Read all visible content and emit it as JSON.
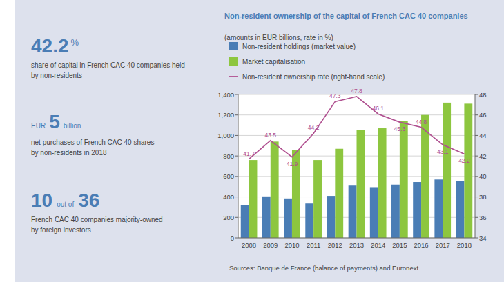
{
  "chart_data": {
    "type": "bar",
    "title": "Non-resident ownership of the capital of French CAC 40 companies",
    "subtitle": "(amounts in EUR billions, rate in %)",
    "categories": [
      "2008",
      "2009",
      "2010",
      "2011",
      "2012",
      "2013",
      "2014",
      "2015",
      "2016",
      "2017",
      "2018"
    ],
    "series": [
      {
        "name": "Non-resident holdings (market value)",
        "color": "#4a7db5",
        "values": [
          320,
          405,
          385,
          335,
          410,
          510,
          495,
          520,
          545,
          570,
          555
        ]
      },
      {
        "name": "Market capitalisation",
        "color": "#8dc63f",
        "values": [
          760,
          940,
          860,
          760,
          870,
          1050,
          1070,
          1140,
          1200,
          1320,
          1310
        ]
      },
      {
        "name": "Non-resident ownership rate (right-hand scale)",
        "color": "#b05090",
        "type": "line",
        "axis": "y2",
        "data_labels": true,
        "values": [
          41.7,
          43.5,
          41.9,
          44.2,
          47.3,
          47.8,
          46.1,
          45.3,
          44.8,
          43.1,
          42.2
        ]
      }
    ],
    "ylim": [
      0,
      1400
    ],
    "yticks": [
      0,
      200,
      400,
      600,
      800,
      {
        "value": 1000,
        "label": "1,000"
      },
      {
        "value": 1200,
        "label": "1,200"
      },
      {
        "value": 1400,
        "label": "1,400"
      }
    ],
    "y2lim": [
      34,
      48
    ],
    "y2ticks": [
      34,
      36,
      38,
      40,
      42,
      44,
      46,
      48
    ],
    "grid": true,
    "legend": "top",
    "annotations": [
      "42.2",
      "%",
      "share of capital in French CAC 40 companies held\nby non-residents",
      "EUR",
      "5",
      "billion",
      "net purchases of French CAC 40 shares\nby non-residents in 2018",
      "10",
      "out of",
      "36",
      "French CAC 40 companies majority-owned\nby foreign investors",
      "Sources: Banque de France (balance of payments) and Euronext."
    ]
  }
}
